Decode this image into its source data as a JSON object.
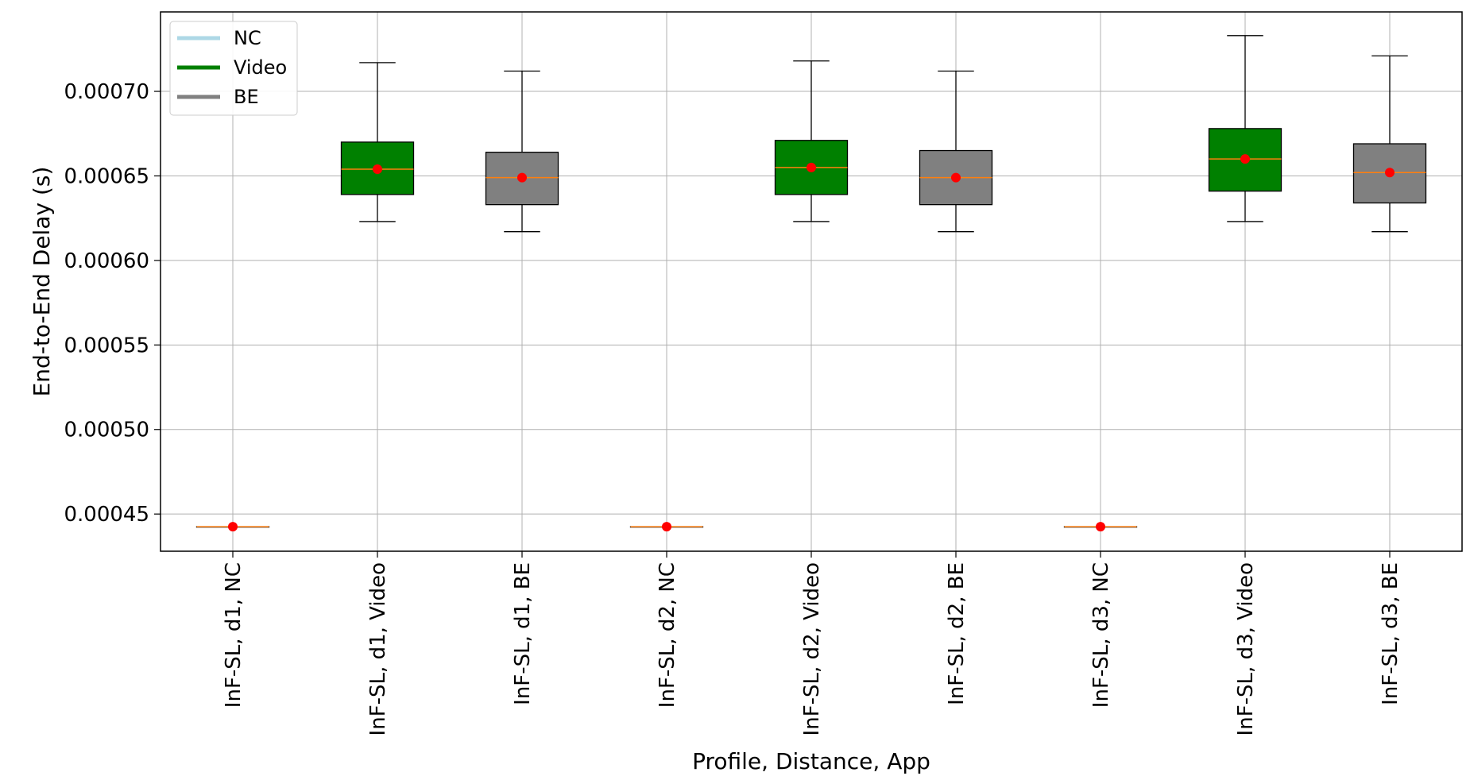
{
  "chart_data": {
    "type": "box",
    "title": "",
    "xlabel": "Profile, Distance, App",
    "ylabel": "End-to-End Delay (s)",
    "ylim": [
      0.000428,
      0.000747
    ],
    "yticks": [
      0.00045,
      0.0005,
      0.00055,
      0.0006,
      0.00065,
      0.0007
    ],
    "ytick_labels": [
      "0.00045",
      "0.00050",
      "0.00055",
      "0.00060",
      "0.00065",
      "0.00070"
    ],
    "grid": true,
    "legend_position": "top-left",
    "colors": {
      "NC": "#add8e6",
      "Video": "#008000",
      "BE": "#808080",
      "median": "#ff7f0e",
      "mean": "#ff0000"
    },
    "legend": [
      {
        "label": "NC",
        "color": "#add8e6"
      },
      {
        "label": "Video",
        "color": "#008000"
      },
      {
        "label": "BE",
        "color": "#808080"
      }
    ],
    "categories": [
      "InF-SL, d1, NC",
      "InF-SL, d1, Video",
      "InF-SL, d1, BE",
      "InF-SL, d2, NC",
      "InF-SL, d2, Video",
      "InF-SL, d2, BE",
      "InF-SL, d3, NC",
      "InF-SL, d3, Video",
      "InF-SL, d3, BE"
    ],
    "boxes": [
      {
        "app": "NC",
        "whislo": 0.0004425,
        "q1": 0.0004425,
        "median": 0.0004425,
        "q3": 0.0004425,
        "whishi": 0.0004425,
        "mean": 0.0004425
      },
      {
        "app": "Video",
        "whislo": 0.000623,
        "q1": 0.000639,
        "median": 0.000654,
        "q3": 0.00067,
        "whishi": 0.000717,
        "mean": 0.000654
      },
      {
        "app": "BE",
        "whislo": 0.000617,
        "q1": 0.000633,
        "median": 0.000649,
        "q3": 0.000664,
        "whishi": 0.000712,
        "mean": 0.000649
      },
      {
        "app": "NC",
        "whislo": 0.0004425,
        "q1": 0.0004425,
        "median": 0.0004425,
        "q3": 0.0004425,
        "whishi": 0.0004425,
        "mean": 0.0004425
      },
      {
        "app": "Video",
        "whislo": 0.000623,
        "q1": 0.000639,
        "median": 0.000655,
        "q3": 0.000671,
        "whishi": 0.000718,
        "mean": 0.000655
      },
      {
        "app": "BE",
        "whislo": 0.000617,
        "q1": 0.000633,
        "median": 0.000649,
        "q3": 0.000665,
        "whishi": 0.000712,
        "mean": 0.000649
      },
      {
        "app": "NC",
        "whislo": 0.0004425,
        "q1": 0.0004425,
        "median": 0.0004425,
        "q3": 0.0004425,
        "whishi": 0.0004425,
        "mean": 0.0004425
      },
      {
        "app": "Video",
        "whislo": 0.000623,
        "q1": 0.000641,
        "median": 0.00066,
        "q3": 0.000678,
        "whishi": 0.000733,
        "mean": 0.00066
      },
      {
        "app": "BE",
        "whislo": 0.000617,
        "q1": 0.000634,
        "median": 0.000652,
        "q3": 0.000669,
        "whishi": 0.000721,
        "mean": 0.000652
      }
    ]
  }
}
